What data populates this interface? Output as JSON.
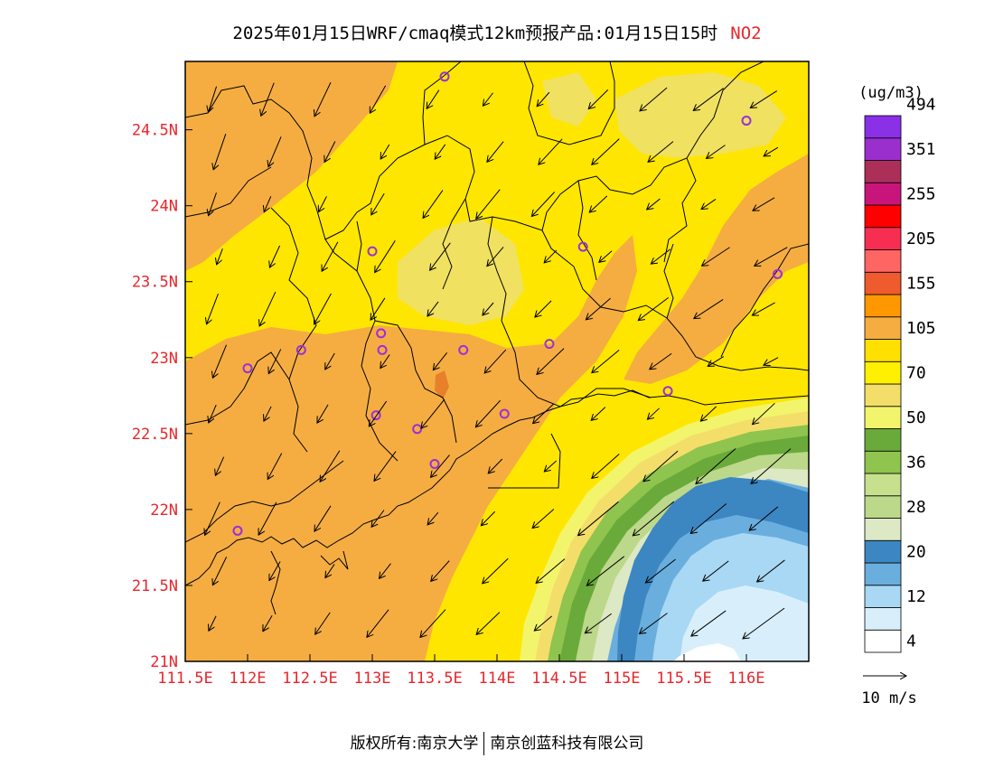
{
  "title": {
    "text": "2025年01月15日WRF/cmaq模式12km预报产品:01月15日15时",
    "species": "NO2"
  },
  "map": {
    "lon_range": [
      111.5,
      116.5
    ],
    "lat_range": [
      21.0,
      24.95
    ],
    "x_ticks": [
      {
        "v": 111.5,
        "label": "111.5E"
      },
      {
        "v": 112,
        "label": "112E"
      },
      {
        "v": 112.5,
        "label": "112.5E"
      },
      {
        "v": 113,
        "label": "113E"
      },
      {
        "v": 113.5,
        "label": "113.5E"
      },
      {
        "v": 114,
        "label": "114E"
      },
      {
        "v": 114.5,
        "label": "114.5E"
      },
      {
        "v": 115,
        "label": "115E"
      },
      {
        "v": 115.5,
        "label": "115.5E"
      },
      {
        "v": 116,
        "label": "116E"
      }
    ],
    "y_ticks": [
      {
        "v": 21,
        "label": "21N"
      },
      {
        "v": 21.5,
        "label": "21.5N"
      },
      {
        "v": 22,
        "label": "22N"
      },
      {
        "v": 22.5,
        "label": "22.5N"
      },
      {
        "v": 23,
        "label": "23N"
      },
      {
        "v": 23.5,
        "label": "23.5N"
      },
      {
        "v": 24,
        "label": "24N"
      },
      {
        "v": 24.5,
        "label": "24.5N"
      }
    ],
    "colors": {
      "orange": "#f5ad42",
      "yellow": "#ffe600",
      "pale_yellow": "#f0e160",
      "dark_orange": "#e8802b"
    },
    "sites": [
      [
        113.58,
        24.85
      ],
      [
        116.0,
        24.56
      ],
      [
        113.0,
        23.7
      ],
      [
        114.69,
        23.73
      ],
      [
        116.25,
        23.55
      ],
      [
        112.43,
        23.05
      ],
      [
        112.0,
        22.93
      ],
      [
        113.07,
        23.16
      ],
      [
        113.08,
        23.05
      ],
      [
        113.73,
        23.05
      ],
      [
        114.42,
        23.09
      ],
      [
        115.37,
        22.78
      ],
      [
        113.03,
        22.62
      ],
      [
        113.36,
        22.53
      ],
      [
        114.06,
        22.63
      ],
      [
        113.5,
        22.3
      ],
      [
        111.92,
        21.86
      ]
    ]
  },
  "colorbar": {
    "unit": "(ug/m3)",
    "colors": [
      "#ffffff",
      "#d8effb",
      "#a8d8f4",
      "#6aaede",
      "#3c86c2",
      "#dde8c4",
      "#bcd88a",
      "#c7e08e",
      "#8fc44e",
      "#6aaa3a",
      "#f2f56c",
      "#f4de6a",
      "#ffef00",
      "#ffe000",
      "#f5ad42",
      "#ff9800",
      "#ee5b2c",
      "#fe6563",
      "#f72e52",
      "#ff0000",
      "#c9157b",
      "#ac2f5a",
      "#9b2fce",
      "#8a30e6"
    ],
    "labels": [
      "4",
      "12",
      "20",
      "28",
      "36",
      "50",
      "70",
      "105",
      "155",
      "205",
      "255",
      "351",
      "494"
    ]
  },
  "wind_legend": {
    "label": "10 m/s"
  },
  "footer": {
    "left": "版权所有:南京大学",
    "right": "南京创蓝科技有限公司"
  }
}
